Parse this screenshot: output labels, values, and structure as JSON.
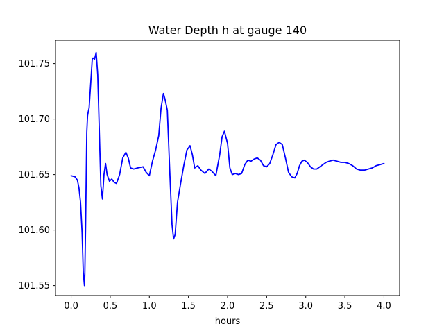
{
  "chart_data": {
    "type": "line",
    "title": "Water Depth h at gauge 140",
    "xlabel": "hours",
    "ylabel": "",
    "xlim": [
      -0.2,
      4.2
    ],
    "ylim": [
      101.541,
      101.771
    ],
    "xticks": [
      "0.0",
      "0.5",
      "1.0",
      "1.5",
      "2.0",
      "2.5",
      "3.0",
      "3.5",
      "4.0"
    ],
    "yticks": [
      "101.55",
      "101.60",
      "101.65",
      "101.70",
      "101.75"
    ],
    "grid": false,
    "series": [
      {
        "color": "#0000ff",
        "x": [
          0.0,
          0.05,
          0.08,
          0.1,
          0.12,
          0.14,
          0.155,
          0.17,
          0.175,
          0.185,
          0.2,
          0.21,
          0.22,
          0.23,
          0.25,
          0.27,
          0.28,
          0.3,
          0.32,
          0.34,
          0.36,
          0.38,
          0.4,
          0.42,
          0.44,
          0.46,
          0.49,
          0.52,
          0.55,
          0.58,
          0.62,
          0.66,
          0.7,
          0.73,
          0.76,
          0.8,
          0.85,
          0.92,
          0.96,
          1.0,
          1.04,
          1.08,
          1.12,
          1.15,
          1.18,
          1.2,
          1.23,
          1.26,
          1.29,
          1.31,
          1.33,
          1.36,
          1.4,
          1.44,
          1.48,
          1.52,
          1.55,
          1.58,
          1.62,
          1.66,
          1.71,
          1.76,
          1.8,
          1.85,
          1.9,
          1.93,
          1.96,
          2.0,
          2.03,
          2.06,
          2.1,
          2.14,
          2.18,
          2.22,
          2.26,
          2.3,
          2.34,
          2.38,
          2.42,
          2.46,
          2.5,
          2.54,
          2.58,
          2.62,
          2.66,
          2.7,
          2.74,
          2.78,
          2.82,
          2.86,
          2.89,
          2.92,
          2.95,
          2.98,
          3.02,
          3.06,
          3.1,
          3.14,
          3.18,
          3.22,
          3.26,
          3.3,
          3.35,
          3.4,
          3.45,
          3.5,
          3.55,
          3.6,
          3.65,
          3.7,
          3.75,
          3.8,
          3.85,
          3.9,
          3.95,
          4.0
        ],
        "y": [
          101.649,
          101.648,
          101.645,
          101.638,
          101.625,
          101.598,
          101.562,
          101.55,
          101.56,
          101.605,
          101.688,
          101.703,
          101.707,
          101.71,
          101.732,
          101.754,
          101.755,
          101.754,
          101.76,
          101.74,
          101.69,
          101.64,
          101.628,
          101.65,
          101.66,
          101.65,
          101.644,
          101.646,
          101.643,
          101.642,
          101.65,
          101.665,
          101.67,
          101.665,
          101.656,
          101.655,
          101.656,
          101.657,
          101.652,
          101.649,
          101.662,
          101.672,
          101.685,
          101.71,
          101.723,
          101.718,
          101.708,
          101.655,
          101.605,
          101.592,
          101.596,
          101.625,
          101.642,
          101.658,
          101.672,
          101.676,
          101.668,
          101.656,
          101.658,
          101.654,
          101.651,
          101.655,
          101.653,
          101.649,
          101.668,
          101.684,
          101.689,
          101.678,
          101.656,
          101.65,
          101.651,
          101.65,
          101.651,
          101.659,
          101.663,
          101.662,
          101.664,
          101.665,
          101.663,
          101.658,
          101.657,
          101.66,
          101.668,
          101.677,
          101.679,
          101.677,
          101.665,
          101.652,
          101.648,
          101.647,
          101.651,
          101.658,
          101.662,
          101.663,
          101.661,
          101.657,
          101.655,
          101.655,
          101.657,
          101.659,
          101.661,
          101.662,
          101.663,
          101.662,
          101.661,
          101.661,
          101.66,
          101.658,
          101.655,
          101.654,
          101.654,
          101.655,
          101.656,
          101.658,
          101.659,
          101.66
        ]
      }
    ]
  }
}
